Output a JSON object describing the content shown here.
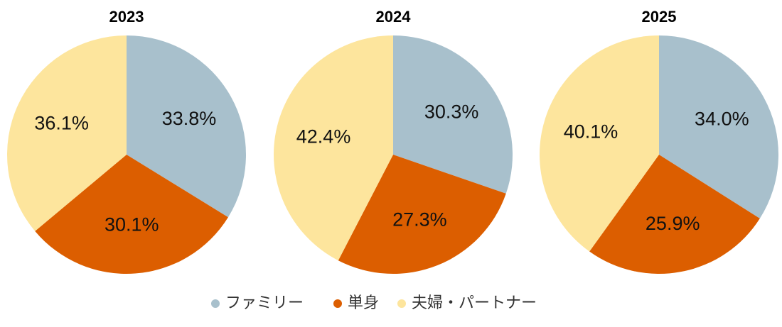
{
  "chart_data": [
    {
      "type": "pie",
      "title": "2023",
      "categories": [
        "ファミリー",
        "単身",
        "夫婦・パートナー"
      ],
      "values": [
        33.8,
        30.1,
        36.1
      ],
      "value_labels": [
        "33.8%",
        "30.1%",
        "36.1%"
      ],
      "colors": [
        "#a8c0cc",
        "#dc5e00",
        "#fde59d"
      ]
    },
    {
      "type": "pie",
      "title": "2024",
      "categories": [
        "ファミリー",
        "単身",
        "夫婦・パートナー"
      ],
      "values": [
        30.3,
        27.3,
        42.4
      ],
      "value_labels": [
        "30.3%",
        "27.3%",
        "42.4%"
      ],
      "colors": [
        "#a8c0cc",
        "#dc5e00",
        "#fde59d"
      ]
    },
    {
      "type": "pie",
      "title": "2025",
      "categories": [
        "ファミリー",
        "単身",
        "夫婦・パートナー"
      ],
      "values": [
        34.0,
        25.9,
        40.1
      ],
      "value_labels": [
        "34.0%",
        "25.9%",
        "40.1%"
      ],
      "colors": [
        "#a8c0cc",
        "#dc5e00",
        "#fde59d"
      ]
    }
  ]
}
